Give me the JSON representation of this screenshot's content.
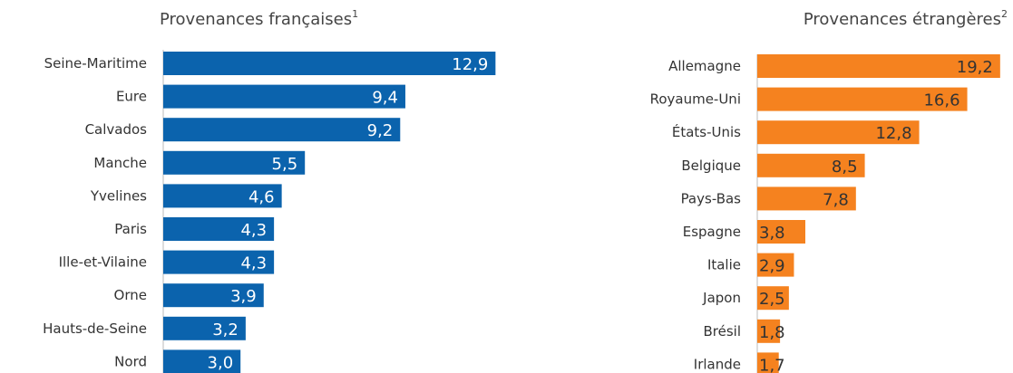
{
  "chart_data": [
    {
      "type": "bar",
      "orientation": "horizontal",
      "title": "Provenances françaises",
      "title_sup": "1",
      "categories": [
        "Seine-Maritime",
        "Eure",
        "Calvados",
        "Manche",
        "Yvelines",
        "Paris",
        "Ille-et-Vilaine",
        "Orne",
        "Hauts-de-Seine",
        "Nord"
      ],
      "values": [
        12.9,
        9.4,
        9.2,
        5.5,
        4.6,
        4.3,
        4.3,
        3.9,
        3.2,
        3.0
      ],
      "value_labels": [
        "12,9",
        "9,4",
        "9,2",
        "5,5",
        "4,6",
        "4,3",
        "4,3",
        "3,9",
        "3,2",
        "3,0"
      ],
      "color": "#0b63ad",
      "label_color": "#ffffff",
      "grid": false,
      "legend": "none"
    },
    {
      "type": "bar",
      "orientation": "horizontal",
      "title": "Provenances étrangères",
      "title_sup": "2",
      "categories": [
        "Allemagne",
        "Royaume-Uni",
        "États-Unis",
        "Belgique",
        "Pays-Bas",
        "Espagne",
        "Italie",
        "Japon",
        "Brésil",
        "Irlande"
      ],
      "values": [
        19.2,
        16.6,
        12.8,
        8.5,
        7.8,
        3.8,
        2.9,
        2.5,
        1.8,
        1.7
      ],
      "value_labels": [
        "19,2",
        "16,6",
        "12,8",
        "8,5",
        "7,8",
        "3,8",
        "2,9",
        "2,5",
        "1,8",
        "1,7"
      ],
      "color": "#f5821f",
      "label_color": "#333333",
      "grid": false,
      "legend": "none"
    }
  ]
}
